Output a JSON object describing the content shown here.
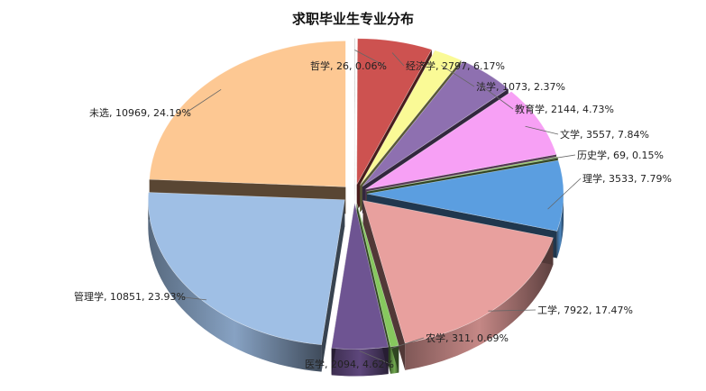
{
  "chart_data": {
    "type": "pie",
    "title": "求职毕业生专业分布",
    "slices": [
      {
        "label": "哲学, 26, 0.06%",
        "name": "哲学",
        "value": 26,
        "percent": 0.06,
        "color": "#b0b0b0"
      },
      {
        "label": "经济学, 2797, 6.17%",
        "name": "经济学",
        "value": 2797,
        "percent": 6.17,
        "color": "#cd5250"
      },
      {
        "label": "法学, 1073, 2.37%",
        "name": "法学",
        "value": 1073,
        "percent": 2.37,
        "color": "#fafa96"
      },
      {
        "label": "教育学, 2144, 4.73%",
        "name": "教育学",
        "value": 2144,
        "percent": 4.73,
        "color": "#8e70b0"
      },
      {
        "label": "文学, 3557, 7.84%",
        "name": "文学",
        "value": 3557,
        "percent": 7.84,
        "color": "#f7a0f5"
      },
      {
        "label": "历史学, 69, 0.15%",
        "name": "历史学",
        "value": 69,
        "percent": 0.15,
        "color": "#8dc560"
      },
      {
        "label": "理学, 3533, 7.79%",
        "name": "理学",
        "value": 3533,
        "percent": 7.79,
        "color": "#5b9ee0"
      },
      {
        "label": "工学, 7922, 17.47%",
        "name": "工学",
        "value": 7922,
        "percent": 17.47,
        "color": "#e8a09e"
      },
      {
        "label": "农学, 311, 0.69%",
        "name": "农学",
        "value": 311,
        "percent": 0.69,
        "color": "#86c85e"
      },
      {
        "label": "医学, 2094, 4.62%",
        "name": "医学",
        "value": 2094,
        "percent": 4.62,
        "color": "#6e5492"
      },
      {
        "label": "管理学, 10851, 23.93%",
        "name": "管理学",
        "value": 10851,
        "percent": 23.93,
        "color": "#9fbfe5"
      },
      {
        "label": "未选, 10969, 24.19%",
        "name": "未选",
        "value": 10969,
        "percent": 24.19,
        "color": "#fdc893"
      }
    ]
  }
}
